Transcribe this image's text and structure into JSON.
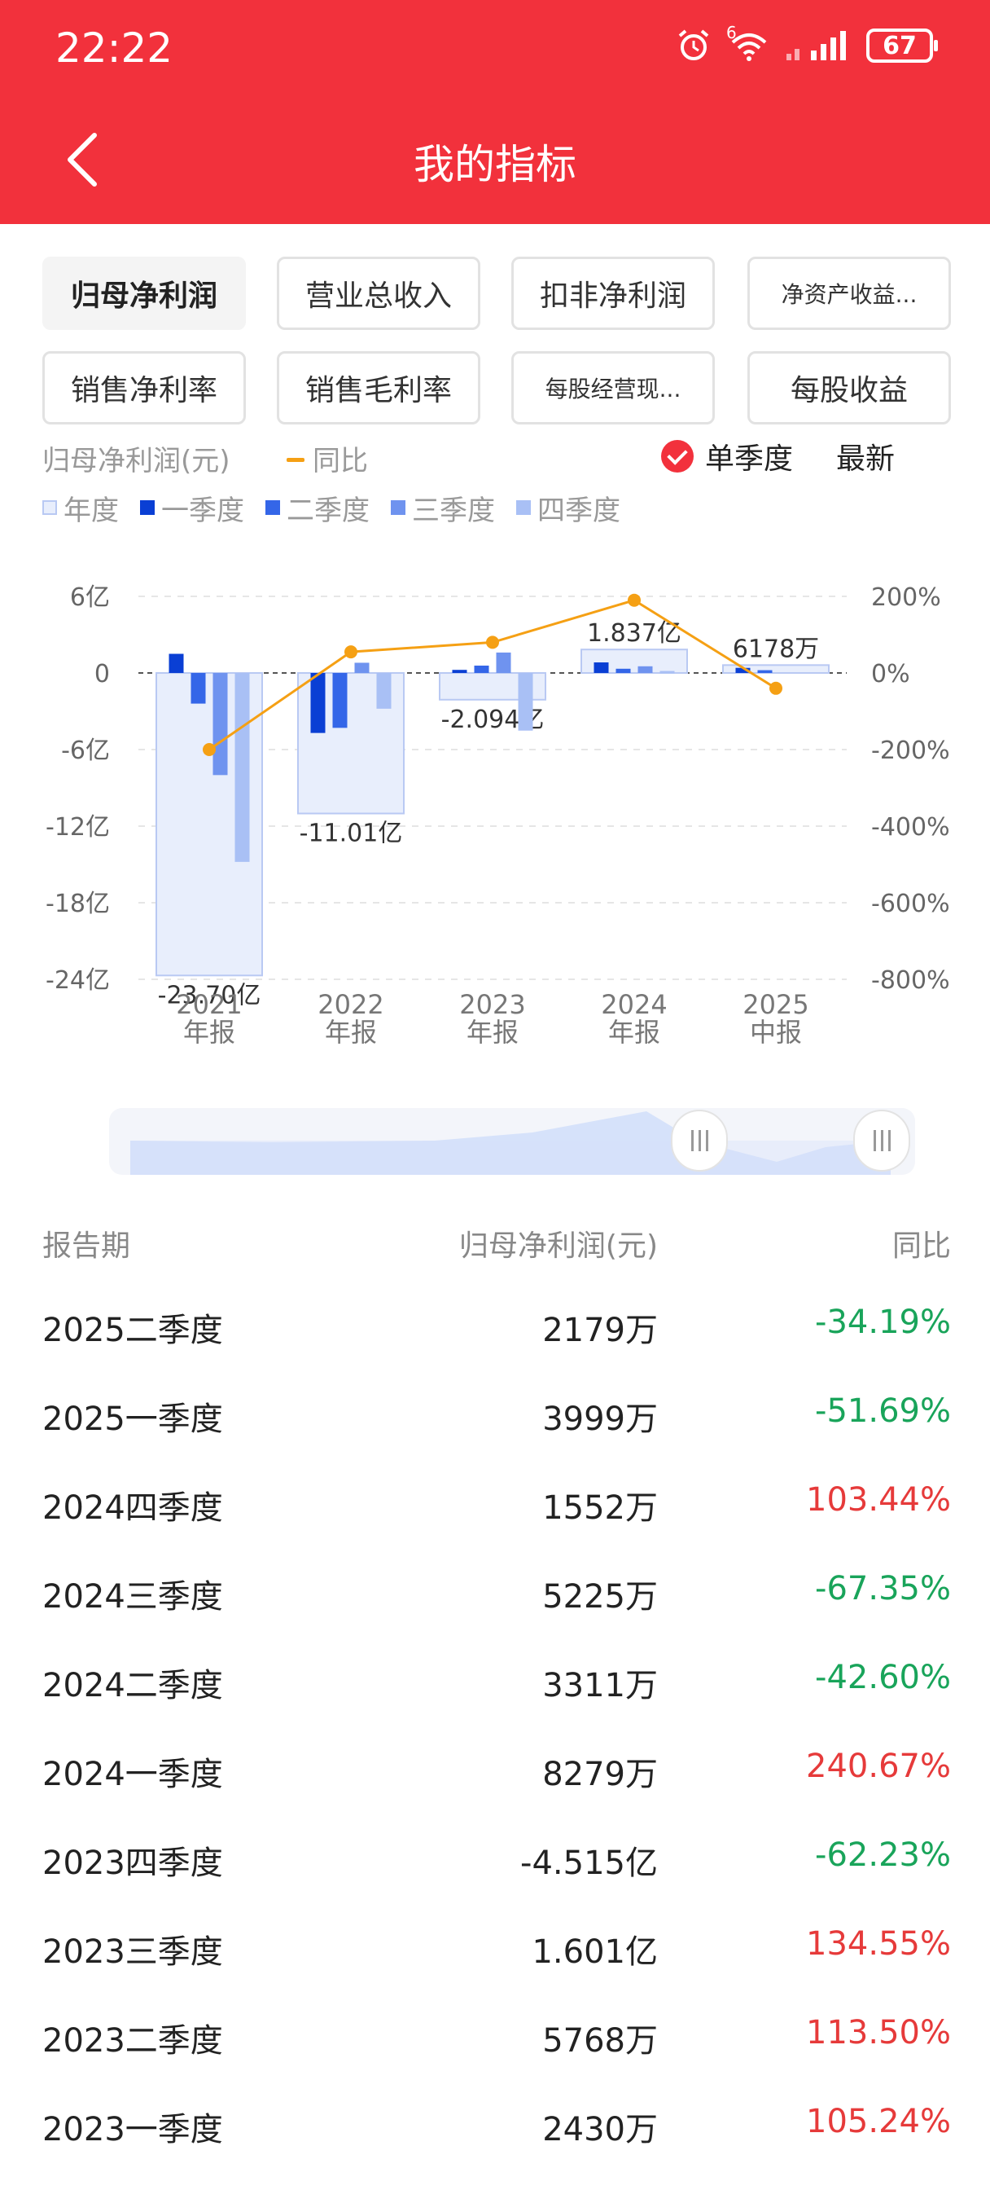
{
  "status": {
    "time": "22:22",
    "battery": "67",
    "network_badge": "6"
  },
  "header": {
    "title": "我的指标"
  },
  "tabs": [
    {
      "label": "归母净利润",
      "active": true
    },
    {
      "label": "营业总收入",
      "active": false
    },
    {
      "label": "扣非净利润",
      "active": false
    },
    {
      "label": "净资产收益...",
      "active": false
    },
    {
      "label": "销售净利率",
      "active": false
    },
    {
      "label": "销售毛利率",
      "active": false
    },
    {
      "label": "每股经营现...",
      "active": false
    },
    {
      "label": "每股收益",
      "active": false
    }
  ],
  "legend": {
    "metric": "归母净利润(元)",
    "yoy": "同比",
    "single_quarter": "单季度",
    "latest": "最新",
    "items": [
      {
        "label": "年度",
        "color": "#e8eefc"
      },
      {
        "label": "一季度",
        "color": "#0a3fd4"
      },
      {
        "label": "二季度",
        "color": "#3466e8"
      },
      {
        "label": "三季度",
        "color": "#6f93ef"
      },
      {
        "label": "四季度",
        "color": "#a9c0f5"
      }
    ]
  },
  "chart_data": {
    "type": "bar",
    "categories": [
      "2021\n年报",
      "2022\n年报",
      "2023\n年报",
      "2024\n年报",
      "2025\n中报"
    ],
    "category_lines": [
      [
        "2021",
        "年报"
      ],
      [
        "2022",
        "年报"
      ],
      [
        "2023",
        "年报"
      ],
      [
        "2024",
        "年报"
      ],
      [
        "2025",
        "中报"
      ]
    ],
    "y_unit": "亿",
    "ylim": [
      -24,
      6
    ],
    "y_ticks": [
      6,
      0,
      -6,
      -12,
      -18,
      -24
    ],
    "y_tick_labels": [
      "6亿",
      "0",
      "-6亿",
      "-12亿",
      "-18亿",
      "-24亿"
    ],
    "y2lim": [
      -800,
      200
    ],
    "y2_ticks": [
      200,
      0,
      -200,
      -400,
      -600,
      -800
    ],
    "y2_tick_labels": [
      "200%",
      "0%",
      "-200%",
      "-400%",
      "-600%",
      "-800%"
    ],
    "annual": [
      -23.7,
      -11.01,
      -2.094,
      1.837,
      0.6178
    ],
    "annual_labels": [
      "-23.70亿",
      "-11.01亿",
      "-2.094亿",
      "1.837亿",
      "6178万"
    ],
    "series": [
      {
        "name": "一季度",
        "values": [
          1.5,
          -4.7,
          0.243,
          0.828,
          0.4
        ]
      },
      {
        "name": "二季度",
        "values": [
          -2.4,
          -4.3,
          0.577,
          0.331,
          0.218
        ]
      },
      {
        "name": "三季度",
        "values": [
          -8.0,
          0.8,
          1.601,
          0.523,
          null
        ]
      },
      {
        "name": "四季度",
        "values": [
          -14.8,
          -2.8,
          -4.515,
          0.155,
          null
        ]
      }
    ],
    "yoy": {
      "name": "同比",
      "values": [
        -200,
        55,
        80,
        190,
        -40
      ]
    },
    "grid": true
  },
  "table": {
    "headers": [
      "报告期",
      "归母净利润(元)",
      "同比"
    ],
    "rows": [
      {
        "period": "2025二季度",
        "value": "2179万",
        "yoy": "-34.19%",
        "dir": "neg"
      },
      {
        "period": "2025一季度",
        "value": "3999万",
        "yoy": "-51.69%",
        "dir": "neg"
      },
      {
        "period": "2024四季度",
        "value": "1552万",
        "yoy": "103.44%",
        "dir": "pos"
      },
      {
        "period": "2024三季度",
        "value": "5225万",
        "yoy": "-67.35%",
        "dir": "neg"
      },
      {
        "period": "2024二季度",
        "value": "3311万",
        "yoy": "-42.60%",
        "dir": "neg"
      },
      {
        "period": "2024一季度",
        "value": "8279万",
        "yoy": "240.67%",
        "dir": "pos"
      },
      {
        "period": "2023四季度",
        "value": "-4.515亿",
        "yoy": "-62.23%",
        "dir": "neg"
      },
      {
        "period": "2023三季度",
        "value": "1.601亿",
        "yoy": "134.55%",
        "dir": "pos"
      },
      {
        "period": "2023二季度",
        "value": "5768万",
        "yoy": "113.50%",
        "dir": "pos"
      },
      {
        "period": "2023一季度",
        "value": "2430万",
        "yoy": "105.24%",
        "dir": "pos"
      }
    ]
  }
}
